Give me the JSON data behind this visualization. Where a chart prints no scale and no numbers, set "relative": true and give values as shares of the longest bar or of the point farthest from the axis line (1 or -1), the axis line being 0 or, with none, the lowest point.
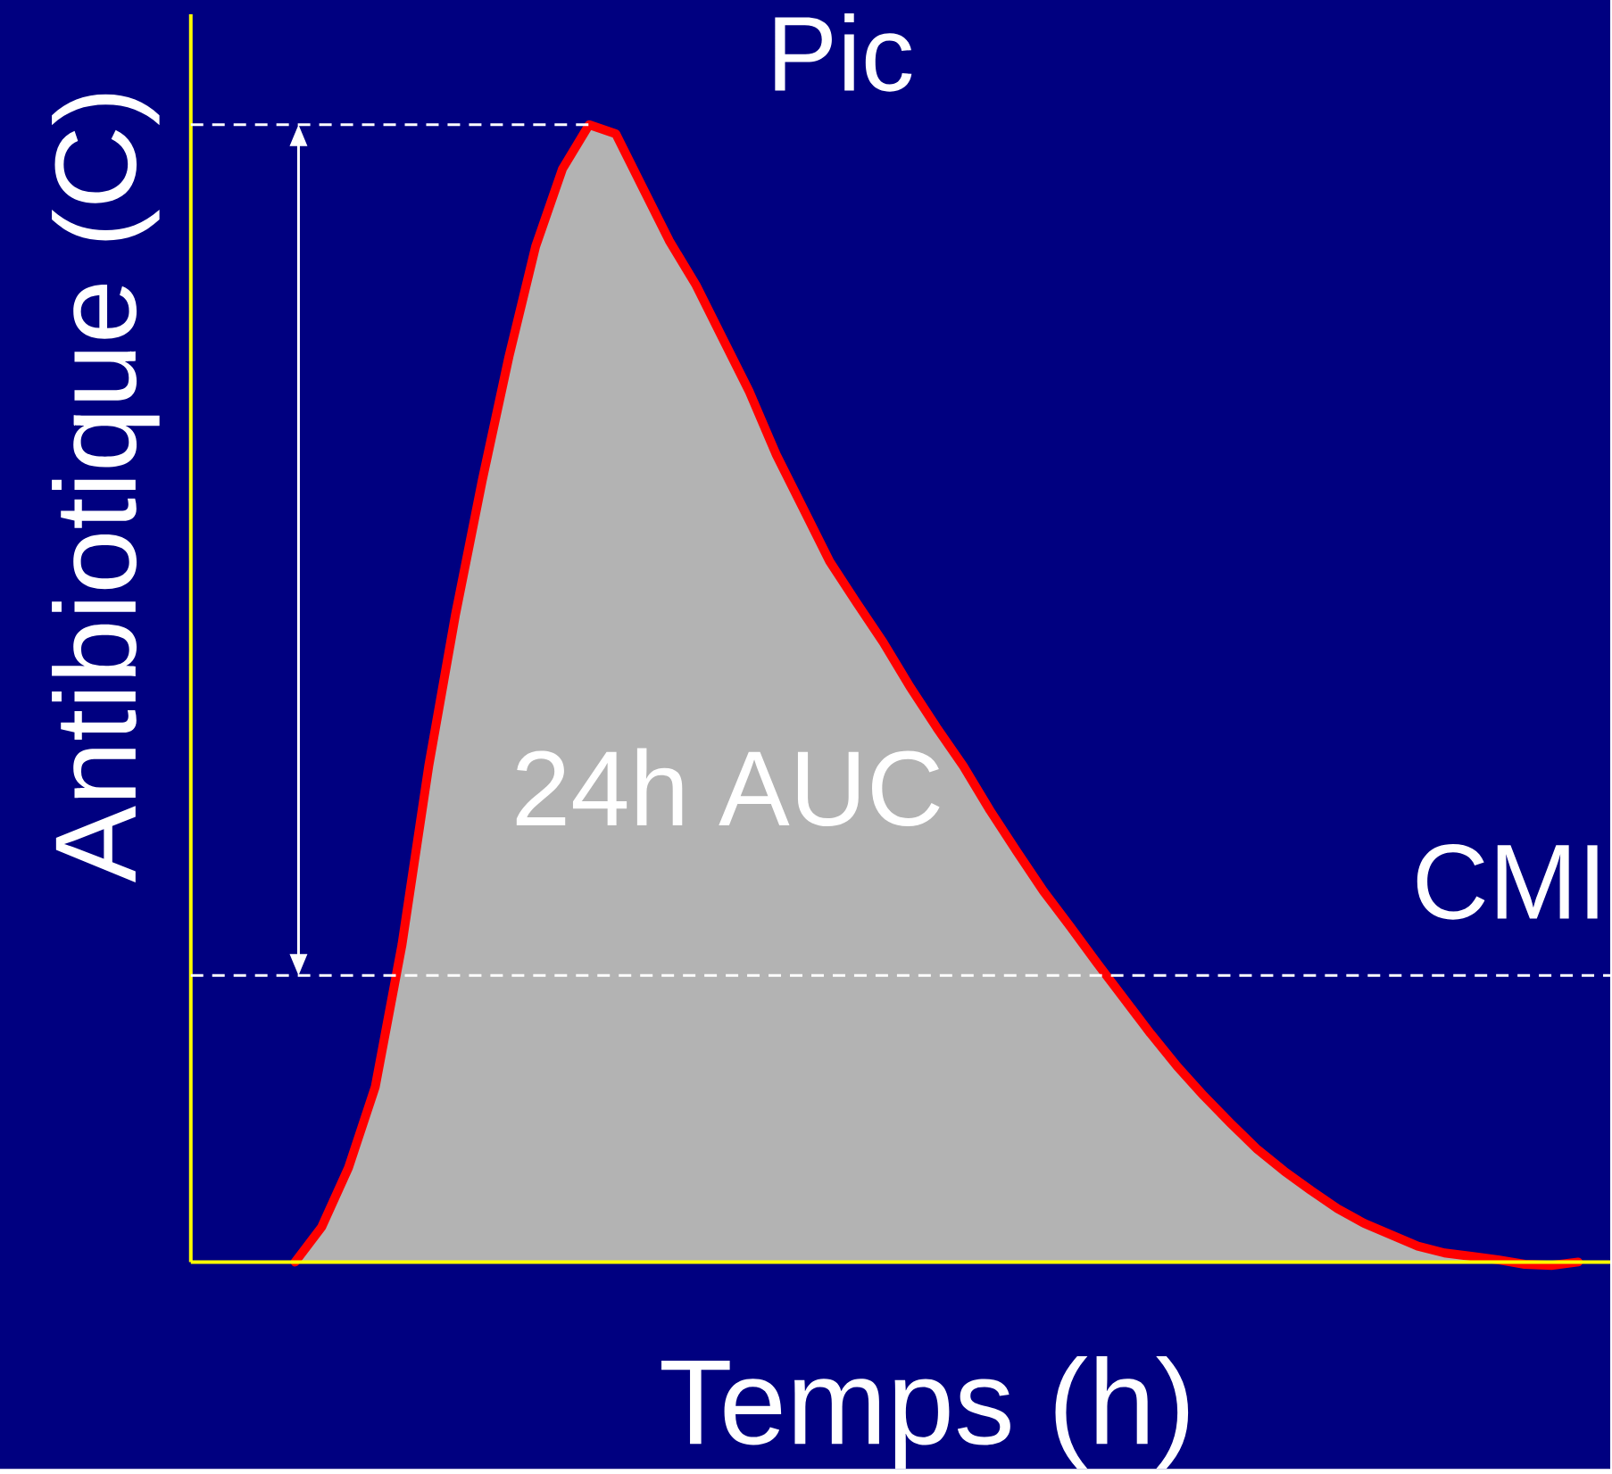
{
  "chart_data": {
    "type": "area",
    "xlabel": "Temps (h)",
    "ylabel": "Antibiotique (C)",
    "relative": true,
    "categories": [
      null,
      null,
      null,
      null,
      null,
      null,
      null,
      null,
      null,
      null,
      null,
      null,
      null,
      null,
      null,
      null,
      null,
      null,
      null,
      null,
      null,
      null,
      null,
      null,
      null,
      null,
      null,
      null,
      null,
      null,
      null,
      null,
      null,
      null,
      null,
      null,
      null,
      null,
      null,
      null,
      null,
      null,
      null,
      null,
      null,
      null,
      null,
      null,
      null
    ],
    "series": [
      {
        "color": "#b3b3b3",
        "values": [
          0,
          0.031,
          0.083,
          0.154,
          0.279,
          0.436,
          0.569,
          0.687,
          0.796,
          0.893,
          0.961,
          1,
          0.992,
          0.945,
          0.898,
          0.859,
          0.812,
          0.765,
          0.71,
          0.663,
          0.616,
          0.58,
          0.545,
          0.506,
          0.47,
          0.436,
          0.397,
          0.361,
          0.326,
          0.295,
          0.263,
          0.232,
          0.201,
          0.172,
          0.146,
          0.122,
          0.099,
          0.08,
          0.063,
          0.047,
          0.034,
          0.024,
          0.014,
          0.008,
          0.005,
          0.002,
          -0.002,
          -0.003,
          0
        ]
      }
    ],
    "ref_lines": [
      {
        "axis": "y",
        "value": 1,
        "label": "Pic",
        "color": "#ffffff",
        "line_style": "dashed"
      },
      {
        "axis": "y",
        "value": 0.252,
        "label": "CMI",
        "color": "#ffffff",
        "line_style": "dashed"
      }
    ],
    "annotations": [
      "24h AUC"
    ]
  }
}
